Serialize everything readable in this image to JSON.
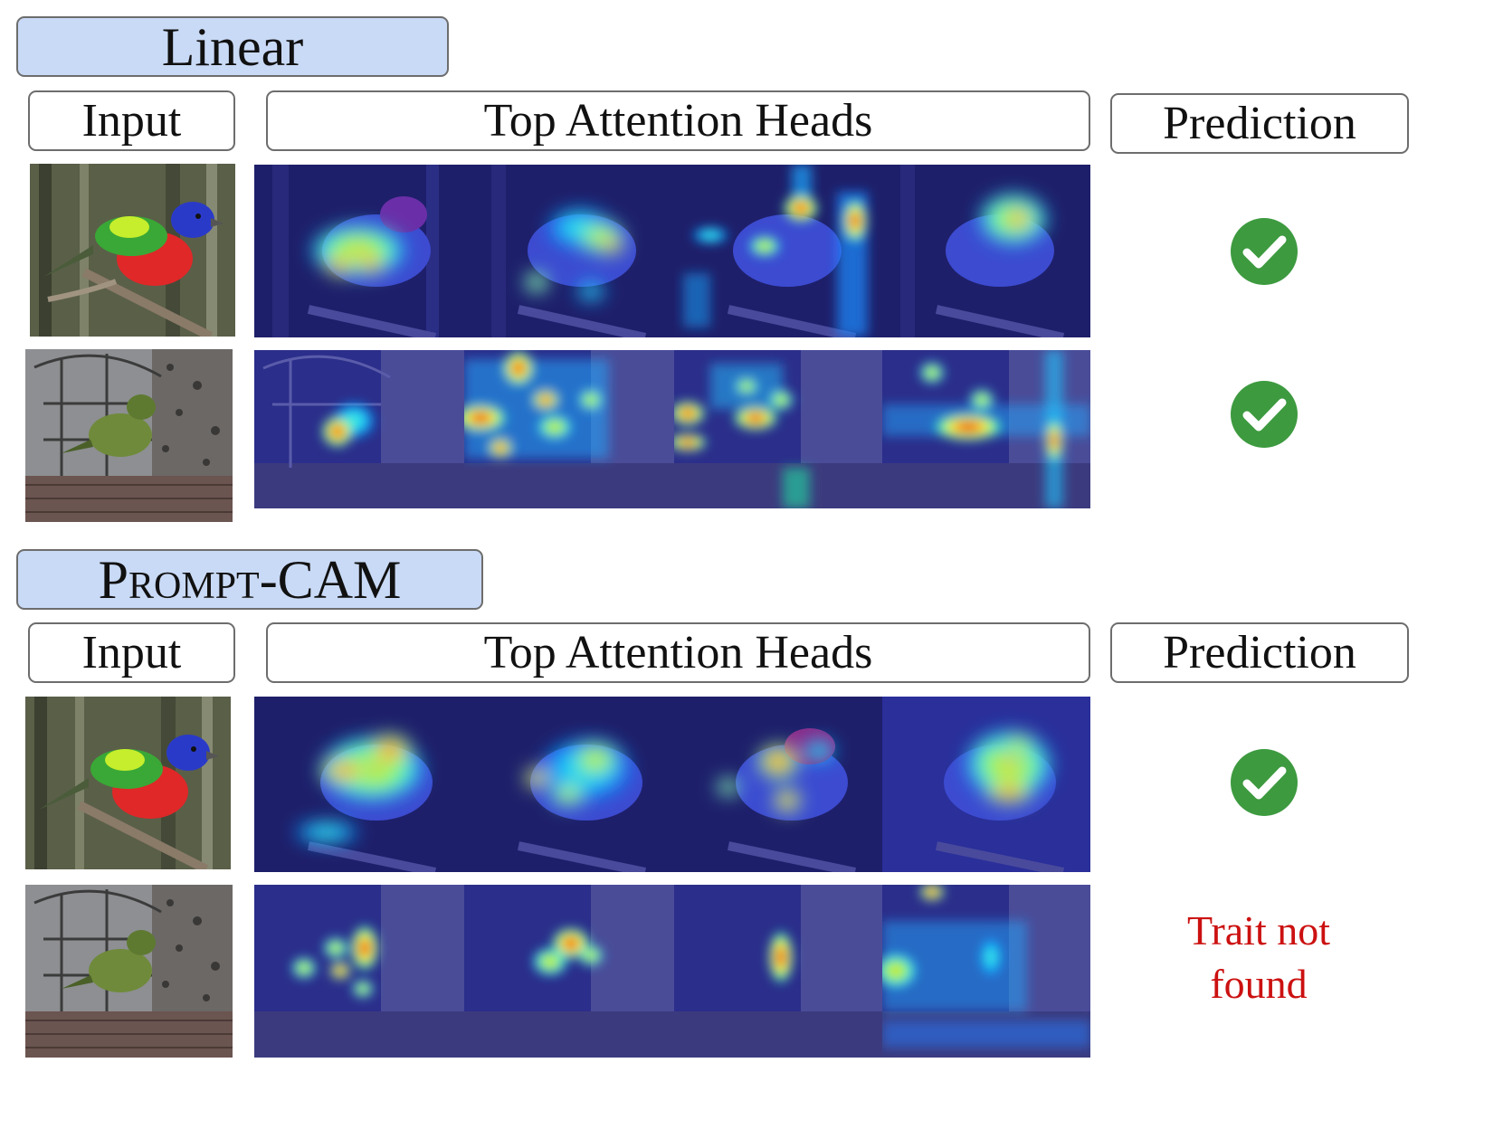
{
  "sections": [
    {
      "title": "Linear",
      "headers": {
        "input": "Input",
        "heads": "Top Attention Heads",
        "prediction": "Prediction"
      },
      "rows": [
        {
          "input": "painted-bunting-male",
          "prediction": "check-icon"
        },
        {
          "input": "painted-bunting-female-feeder",
          "prediction": "check-icon"
        }
      ]
    },
    {
      "title_first": "P",
      "title_smallcaps": "rompt",
      "title_rest": "-CAM",
      "headers": {
        "input": "Input",
        "heads": "Top Attention Heads",
        "prediction": "Prediction"
      },
      "rows": [
        {
          "input": "painted-bunting-male",
          "prediction": "check-icon"
        },
        {
          "input": "painted-bunting-female-feeder",
          "prediction_line1": "Trait not",
          "prediction_line2": "found"
        }
      ]
    }
  ],
  "colors": {
    "title_fill": "#c9daf6",
    "box_border": "#6d6d6d",
    "check_green": "#3d9a3f",
    "fail_red": "#cc1111"
  }
}
